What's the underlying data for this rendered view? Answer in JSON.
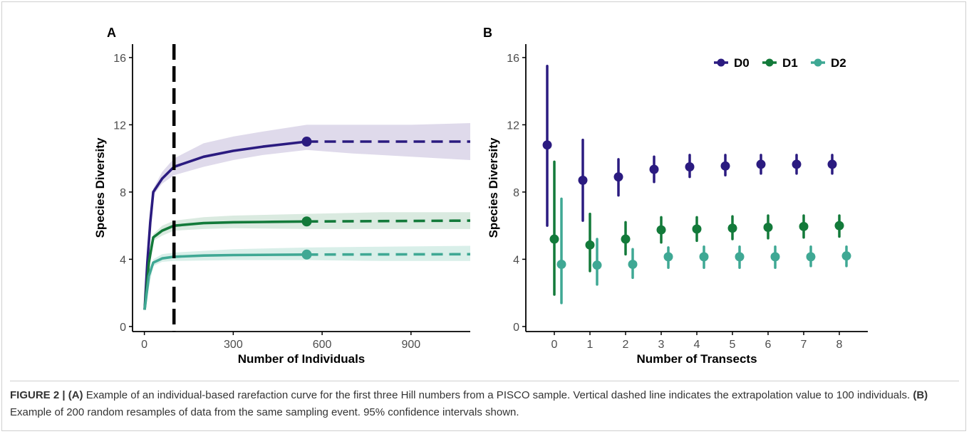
{
  "figure": {
    "caption": {
      "label": "FIGURE 2 |",
      "part_a_tag": "(A)",
      "part_a_text": " Example of an individual-based rarefaction curve for the first three Hill numbers from a PISCO sample. Vertical dashed line indicates the extrapolation value to 100 individuals. ",
      "part_b_tag": "(B)",
      "part_b_text": " Example of 200 random resamples of data from the same sampling event. 95% confidence intervals shown."
    }
  },
  "colors": {
    "D0": "#2b1b80",
    "D1": "#137a3a",
    "D2": "#3fa894",
    "band_D0": "#d9d3e8",
    "band_D1": "#d3e6da",
    "band_D2": "#d2ece5",
    "axis": "#000000"
  },
  "chart_data": [
    {
      "panel": "A",
      "type": "line",
      "xlabel": "Number of Individuals",
      "ylabel": "Species Diversity",
      "xlim": [
        -40,
        1100
      ],
      "ylim": [
        -0.3,
        16.8
      ],
      "xticks": [
        0,
        300,
        600,
        900
      ],
      "yticks": [
        0,
        4,
        8,
        12,
        16
      ],
      "vline": 100,
      "observed_n": 548,
      "extrap_end": 1100,
      "series": [
        {
          "name": "D0",
          "interp": [
            [
              1,
              1
            ],
            [
              10,
              3.8
            ],
            [
              20,
              6.2
            ],
            [
              30,
              8.0
            ],
            [
              60,
              8.8
            ],
            [
              100,
              9.5
            ],
            [
              200,
              10.1
            ],
            [
              300,
              10.45
            ],
            [
              400,
              10.7
            ],
            [
              548,
              11.0
            ]
          ],
          "extrap": [
            [
              548,
              11.0
            ],
            [
              1100,
              11.0
            ]
          ],
          "band": [
            [
              1,
              1,
              1
            ],
            [
              30,
              7.8,
              8.2
            ],
            [
              60,
              8.5,
              9.2
            ],
            [
              100,
              9.0,
              10.0
            ],
            [
              200,
              9.5,
              10.9
            ],
            [
              300,
              9.9,
              11.3
            ],
            [
              400,
              10.2,
              11.6
            ],
            [
              548,
              10.5,
              12.0
            ],
            [
              700,
              10.3,
              12.0
            ],
            [
              900,
              10.1,
              12.0
            ],
            [
              1100,
              9.9,
              12.1
            ]
          ]
        },
        {
          "name": "D1",
          "interp": [
            [
              1,
              1
            ],
            [
              15,
              3.8
            ],
            [
              30,
              5.3
            ],
            [
              60,
              5.7
            ],
            [
              100,
              6.0
            ],
            [
              200,
              6.15
            ],
            [
              300,
              6.2
            ],
            [
              400,
              6.22
            ],
            [
              548,
              6.25
            ]
          ],
          "extrap": [
            [
              548,
              6.25
            ],
            [
              1100,
              6.3
            ]
          ],
          "band": [
            [
              1,
              1,
              1
            ],
            [
              30,
              5.1,
              5.5
            ],
            [
              60,
              5.4,
              6.0
            ],
            [
              100,
              5.7,
              6.3
            ],
            [
              200,
              5.8,
              6.5
            ],
            [
              300,
              5.85,
              6.6
            ],
            [
              548,
              5.8,
              6.7
            ],
            [
              800,
              5.8,
              6.8
            ],
            [
              1100,
              5.8,
              6.8
            ]
          ]
        },
        {
          "name": "D2",
          "interp": [
            [
              1,
              1
            ],
            [
              15,
              3.0
            ],
            [
              30,
              3.8
            ],
            [
              60,
              4.05
            ],
            [
              100,
              4.15
            ],
            [
              200,
              4.22
            ],
            [
              300,
              4.25
            ],
            [
              548,
              4.28
            ]
          ],
          "extrap": [
            [
              548,
              4.28
            ],
            [
              1100,
              4.3
            ]
          ],
          "band": [
            [
              1,
              1,
              1
            ],
            [
              30,
              3.6,
              4.0
            ],
            [
              60,
              3.85,
              4.3
            ],
            [
              100,
              3.9,
              4.4
            ],
            [
              300,
              3.95,
              4.6
            ],
            [
              548,
              3.95,
              4.7
            ],
            [
              800,
              3.9,
              4.75
            ],
            [
              1100,
              3.9,
              4.8
            ]
          ]
        }
      ]
    },
    {
      "panel": "B",
      "type": "scatter",
      "xlabel": "Number of Transects",
      "ylabel": "Species Diversity",
      "xlim": [
        -0.8,
        8.8
      ],
      "ylim": [
        -0.3,
        16.8
      ],
      "xticks": [
        "0",
        "1",
        "2",
        "3",
        "4",
        "5",
        "6",
        "7",
        "8"
      ],
      "yticks": [
        0,
        4,
        8,
        12,
        16
      ],
      "legend_position": "top-right",
      "series": [
        {
          "name": "D0",
          "x": [
            0,
            1,
            2,
            3,
            4,
            5,
            6,
            7,
            8
          ],
          "y": [
            10.8,
            8.7,
            8.9,
            9.35,
            9.5,
            9.55,
            9.65,
            9.65,
            9.65
          ],
          "lo": [
            6.0,
            6.3,
            7.8,
            8.6,
            8.9,
            9.0,
            9.1,
            9.1,
            9.1
          ],
          "hi": [
            15.5,
            11.1,
            9.95,
            10.1,
            10.2,
            10.2,
            10.2,
            10.2,
            10.2
          ]
        },
        {
          "name": "D1",
          "x": [
            0,
            1,
            2,
            3,
            4,
            5,
            6,
            7,
            8
          ],
          "y": [
            5.2,
            4.85,
            5.2,
            5.75,
            5.8,
            5.85,
            5.9,
            5.95,
            6.0
          ],
          "lo": [
            1.9,
            3.3,
            4.3,
            5.0,
            5.1,
            5.2,
            5.25,
            5.3,
            5.35
          ],
          "hi": [
            9.8,
            6.7,
            6.2,
            6.5,
            6.5,
            6.55,
            6.6,
            6.6,
            6.6
          ]
        },
        {
          "name": "D2",
          "x": [
            0,
            1,
            2,
            3,
            4,
            5,
            6,
            7,
            8
          ],
          "y": [
            3.7,
            3.65,
            3.7,
            4.15,
            4.15,
            4.15,
            4.15,
            4.15,
            4.2
          ],
          "lo": [
            1.4,
            2.5,
            2.9,
            3.5,
            3.5,
            3.5,
            3.5,
            3.6,
            3.6
          ],
          "hi": [
            7.6,
            5.2,
            4.6,
            4.7,
            4.75,
            4.75,
            4.75,
            4.75,
            4.75
          ]
        }
      ]
    }
  ]
}
